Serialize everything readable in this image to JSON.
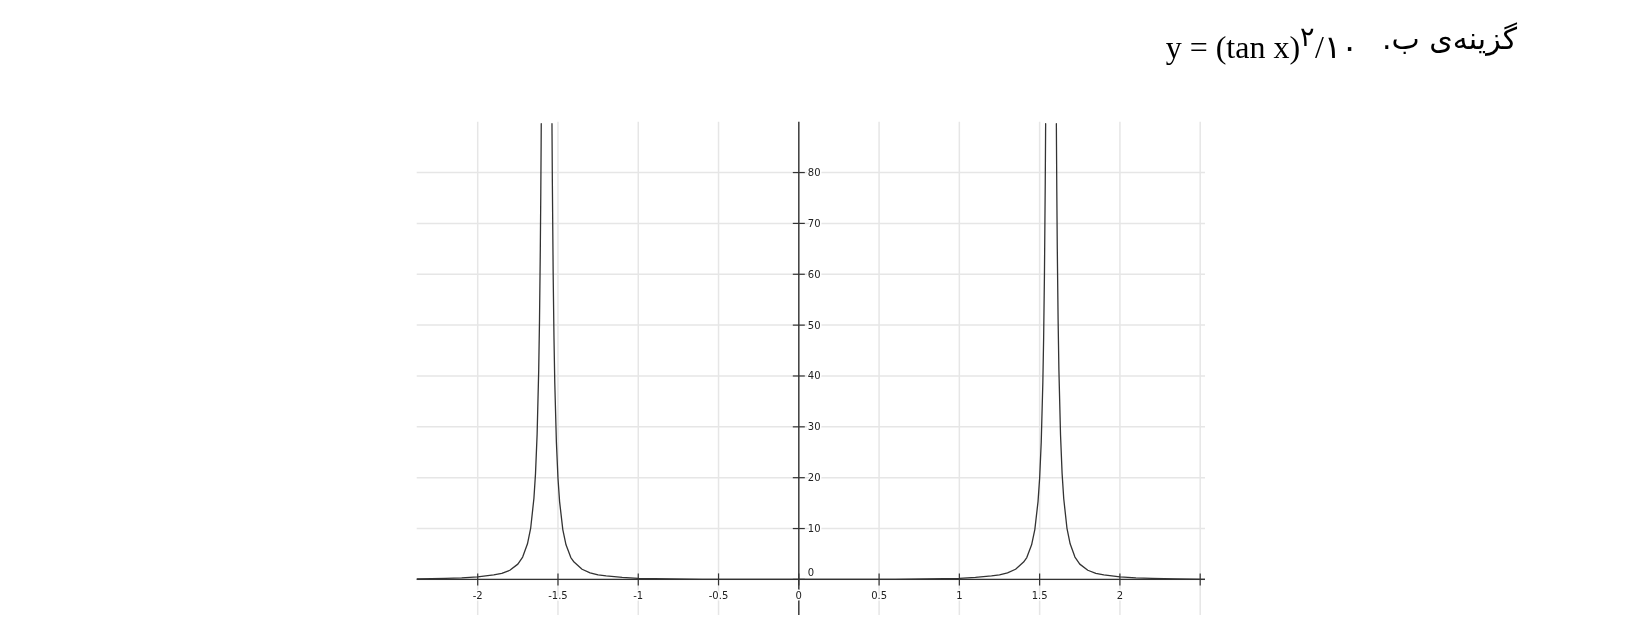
{
  "chart_data": {
    "type": "line",
    "title": "گزینه‌ی ب.",
    "annotations": [
      "y = (tan x)$^{۲}$/۱۰"
    ],
    "series": [
      {
        "color": "#333333",
        "x": [
          -2.38,
          -2.2,
          -2.1,
          -2.0,
          -1.9,
          -1.85,
          -1.8,
          -1.75,
          -1.72,
          -1.69,
          -1.67,
          -1.65,
          -1.64,
          -1.63,
          -1.62,
          -1.615,
          -1.61,
          -1.607,
          -1.605,
          -1.6042
        ],
        "values": [
          0.1,
          0.2,
          0.3,
          0.5,
          0.9,
          1.2,
          1.8,
          3.0,
          4.4,
          7.0,
          10.1,
          15.9,
          20.8,
          28.5,
          41.2,
          51.1,
          65.0,
          76.2,
          85.4,
          89.6
        ]
      },
      {
        "color": "#333333",
        "x": [
          -1.5374,
          -1.537,
          -1.535,
          -1.53,
          -1.525,
          -1.52,
          -1.51,
          -1.5,
          -1.49,
          -1.47,
          -1.45,
          -1.42,
          -1.4,
          -1.35,
          -1.3,
          -1.25,
          -1.2,
          -1.1,
          -1.0,
          -0.8,
          -0.6,
          -0.3,
          0,
          0.3,
          0.6,
          0.8,
          1.0,
          1.1,
          1.2,
          1.25,
          1.3,
          1.35,
          1.4,
          1.42,
          1.45,
          1.47,
          1.49,
          1.5,
          1.51,
          1.52,
          1.525,
          1.53,
          1.535,
          1.537,
          1.5374
        ],
        "values": [
          89.6,
          87.5,
          78.0,
          60.0,
          47.6,
          38.7,
          27.0,
          19.9,
          15.3,
          9.8,
          6.8,
          4.3,
          3.4,
          2.0,
          1.3,
          0.9,
          0.7,
          0.4,
          0.2,
          0.1,
          0.0,
          0.0,
          0,
          0.0,
          0.0,
          0.1,
          0.2,
          0.4,
          0.7,
          0.9,
          1.3,
          2.0,
          3.4,
          4.3,
          6.8,
          9.8,
          15.3,
          19.9,
          27.0,
          38.7,
          47.6,
          60.0,
          78.0,
          87.5,
          89.6
        ]
      },
      {
        "color": "#333333",
        "x": [
          1.6042,
          1.605,
          1.607,
          1.61,
          1.615,
          1.62,
          1.63,
          1.64,
          1.65,
          1.67,
          1.69,
          1.72,
          1.75,
          1.8,
          1.85,
          1.9,
          2.0,
          2.1,
          2.2,
          2.35,
          2.53
        ],
        "values": [
          89.6,
          85.4,
          76.2,
          65.0,
          51.1,
          41.2,
          28.5,
          20.8,
          15.9,
          10.1,
          7.0,
          4.4,
          3.0,
          1.8,
          1.2,
          0.9,
          0.5,
          0.3,
          0.2,
          0.1,
          0.0
        ]
      }
    ],
    "xlim": [
      -2.38,
      2.53
    ],
    "ylim": [
      -7,
      90
    ],
    "xticks": [
      -2,
      -1.5,
      -1,
      -0.5,
      0,
      0.5,
      1,
      1.5,
      2,
      {
        "value": 2.5,
        "label": null
      }
    ],
    "yticks": [
      0,
      10,
      20,
      30,
      40,
      50,
      60,
      70,
      80
    ],
    "grid": true
  }
}
